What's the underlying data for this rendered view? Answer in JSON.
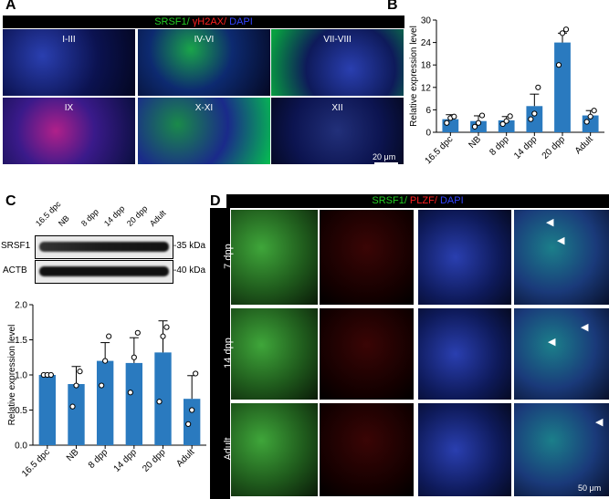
{
  "panels": {
    "A": "A",
    "B": "B",
    "C": "C",
    "D": "D"
  },
  "panelA": {
    "header": {
      "srsf1": "SRSF1/",
      "gh2ax": " γH2AX/",
      "dapi": " DAPI"
    },
    "stages": [
      "I-III",
      "IV-VI",
      "VII-VIII",
      "IX",
      "X-XI",
      "XII"
    ],
    "scalebar": "20 μm"
  },
  "panelD": {
    "header": {
      "srsf1": "SRSF1/",
      "plzf": " PLZF/",
      "dapi": " DAPI"
    },
    "rows": [
      "7 dpp",
      "14 dpp",
      "Adult"
    ],
    "scalebar": "50 μm"
  },
  "westernBlot": {
    "lanes": [
      "16.5 dpc",
      "NB",
      "8 dpp",
      "14 dpp",
      "20 dpp",
      "Adult"
    ],
    "proteins": [
      "SRSF1",
      "ACTB"
    ],
    "sizes": [
      "35 kDa",
      "40 kDa"
    ]
  },
  "colors": {
    "bar": "#2a7abf",
    "srsf1": "#22cc22",
    "gh2ax": "#ff2020",
    "dapi": "#3344ff"
  },
  "chart_data": [
    {
      "type": "bar",
      "categories": [
        "16.5 dpc",
        "NB",
        "8 dpp",
        "14 dpp",
        "20 dpp",
        "Adult"
      ],
      "values": [
        3.5,
        3.0,
        3.2,
        7.0,
        24.0,
        4.5
      ],
      "errors": [
        1.2,
        1.4,
        1.0,
        3.2,
        2.5,
        1.3
      ],
      "points": [
        [
          2.5,
          3.8,
          4.2
        ],
        [
          1.5,
          2.5,
          4.5
        ],
        [
          2.2,
          3.0,
          4.3
        ],
        [
          3.5,
          5.0,
          12.0
        ],
        [
          18.0,
          26.5,
          27.5
        ],
        [
          2.8,
          4.2,
          5.8
        ]
      ],
      "ylabel": "Relative  expression level",
      "ylim": [
        0,
        30
      ],
      "yticks": [
        0,
        6,
        12,
        18,
        24,
        30
      ]
    },
    {
      "type": "bar",
      "categories": [
        "16.5 dpc",
        "NB",
        "8 dpp",
        "14 dpp",
        "20 dpp",
        "Adult"
      ],
      "values": [
        1.0,
        0.87,
        1.2,
        1.17,
        1.32,
        0.66
      ],
      "errors": [
        0,
        0.25,
        0.26,
        0.36,
        0.45,
        0.33
      ],
      "points": [
        [
          1.0,
          1.0,
          1.0
        ],
        [
          0.55,
          0.85,
          1.05
        ],
        [
          0.85,
          1.2,
          1.55
        ],
        [
          0.75,
          1.25,
          1.6
        ],
        [
          0.62,
          1.55,
          1.68
        ],
        [
          0.3,
          0.5,
          1.02
        ]
      ],
      "ylabel": "Relative  expression level",
      "ylim": [
        0,
        2.0
      ],
      "yticks": [
        0,
        0.5,
        1.0,
        1.5,
        2.0
      ]
    }
  ]
}
